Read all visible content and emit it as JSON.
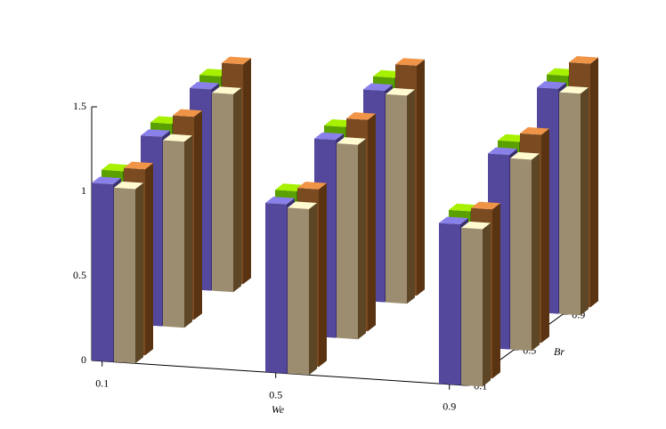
{
  "chart_data": {
    "type": "bar3d",
    "x_label": "We",
    "y_label": "Br",
    "x_categories": [
      "0.1",
      "0.5",
      "0.9"
    ],
    "y_categories": [
      "0.1",
      "0.5",
      "0.9"
    ],
    "zlim": [
      0,
      1.5
    ],
    "zticks": [
      0,
      0.5,
      1,
      1.5
    ],
    "series": [
      {
        "color": "#5aa000",
        "top_color": "#a6f000",
        "side_color": "#3e7000",
        "values": [
          [
            1.08,
            1.15,
            1.22
          ],
          [
            1.03,
            1.2,
            1.28
          ],
          [
            0.98,
            1.18,
            1.36
          ]
        ]
      },
      {
        "color": "#7a4a20",
        "top_color": "#f09448",
        "side_color": "#5a3412",
        "values": [
          [
            1.1,
            1.2,
            1.3
          ],
          [
            1.05,
            1.25,
            1.36
          ],
          [
            1.0,
            1.23,
            1.44
          ]
        ]
      },
      {
        "color": "#54489c",
        "top_color": "#8a80ea",
        "side_color": "#3a3070",
        "values": [
          [
            1.05,
            1.12,
            1.19
          ],
          [
            1.0,
            1.17,
            1.25
          ],
          [
            0.95,
            1.15,
            1.33
          ]
        ]
      },
      {
        "color": "#9c8c70",
        "top_color": "#fffad0",
        "side_color": "#5c4626",
        "values": [
          [
            1.03,
            1.1,
            1.17
          ],
          [
            0.98,
            1.15,
            1.23
          ],
          [
            0.93,
            1.13,
            1.31
          ]
        ]
      }
    ]
  }
}
